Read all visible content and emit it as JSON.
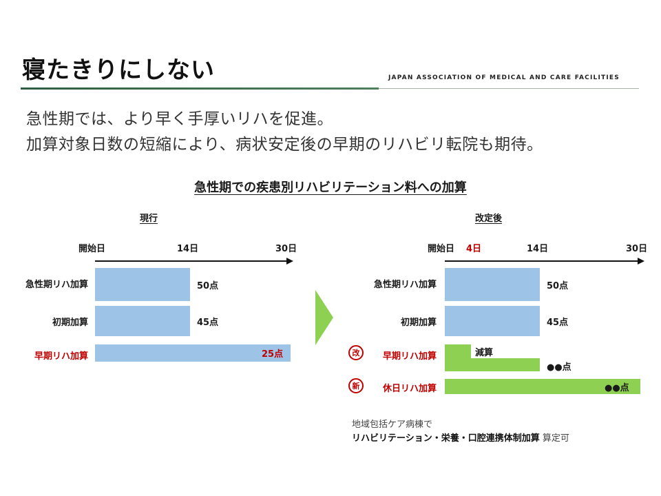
{
  "slide": {
    "title": "寝たきりにしない",
    "org": "JAPAN ASSOCIATION OF MEDICAL AND CARE FACILITIES",
    "lead_line1": "急性期では、より早く手厚いリハを促進。",
    "lead_line2": "加算対象日数の短縮により、病状安定後の早期のリハビリ転院も期待。",
    "colors": {
      "rule": "#2f5e42",
      "bar_blue": "#9dc3e6",
      "bar_green": "#8ed052",
      "accent_red": "#c00000"
    }
  },
  "chart": {
    "title": "急性期での疾患別リハビリテーション料への加算",
    "arrow_icon": "right-arrow-icon"
  },
  "current": {
    "heading": "現行",
    "ticks": {
      "start": "開始日",
      "day14": "14日",
      "day30": "30日"
    },
    "rows": [
      {
        "label": "急性期リハ加算",
        "value": "50点"
      },
      {
        "label": "初期加算",
        "value": "45点"
      },
      {
        "label": "早期リハ加算",
        "value": "25点"
      }
    ]
  },
  "revised": {
    "heading": "改定後",
    "ticks": {
      "start": "開始日",
      "day4": "4日",
      "day14": "14日",
      "day30": "30日"
    },
    "rows": [
      {
        "label": "急性期リハ加算",
        "value": "50点"
      },
      {
        "label": "初期加算",
        "value": "45点"
      },
      {
        "badge": "改",
        "label": "早期リハ加算",
        "inner": "減算",
        "value": "●●点"
      },
      {
        "badge": "新",
        "label": "休日リハ加算",
        "value": "●●点"
      }
    ],
    "note_line1": "地域包括ケア病棟で",
    "note_bold": "リハビリテーション・栄養・口腔連携体制加算",
    "note_tail": " 算定可"
  }
}
